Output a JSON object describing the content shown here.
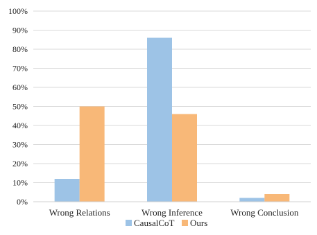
{
  "chart_data": {
    "type": "bar",
    "categories": [
      "Wrong Relations",
      "Wrong Inference",
      "Wrong Conclusion"
    ],
    "series": [
      {
        "name": "CausalCoT",
        "values": [
          12,
          86,
          2
        ],
        "color": "#9dc3e6"
      },
      {
        "name": "Ours",
        "values": [
          50,
          46,
          4
        ],
        "color": "#f8b878"
      }
    ],
    "ylim": [
      0,
      100
    ],
    "yticks": [
      "0%",
      "10%",
      "20%",
      "30%",
      "40%",
      "50%",
      "60%",
      "70%",
      "80%",
      "90%",
      "100%"
    ],
    "grid": true,
    "legend_position": "bottom",
    "title": "",
    "xlabel": "",
    "ylabel": ""
  }
}
